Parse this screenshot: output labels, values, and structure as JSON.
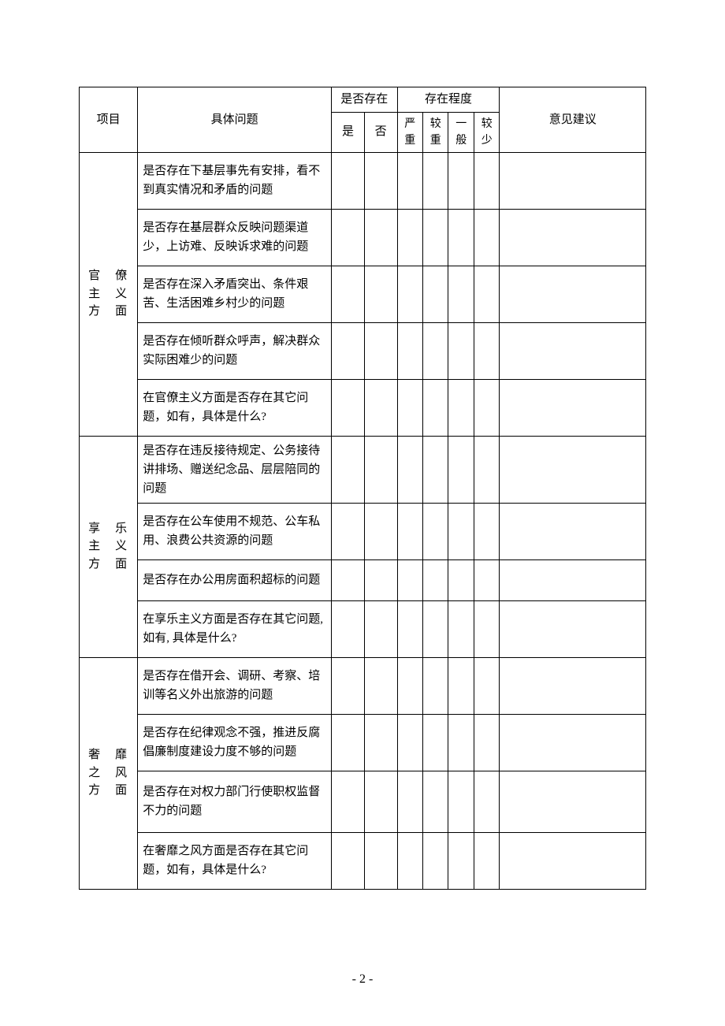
{
  "headers": {
    "project": "项目",
    "question": "具体问题",
    "exists": "是否存在",
    "exists_yes": "是",
    "exists_no": "否",
    "degree": "存在程度",
    "degree_severe": "严重",
    "degree_heavy": "较重",
    "degree_normal": "一般",
    "degree_light": "较少",
    "suggestion": "意见建议"
  },
  "sections": [
    {
      "title_lines": [
        "官　僚",
        "主　义",
        "方　面"
      ],
      "questions": [
        "是否存在下基层事先有安排，看不到真实情况和矛盾的问题",
        "是否存在基层群众反映问题渠道少，上访难、反映诉求难的问题",
        "是否存在深入矛盾突出、条件艰苦、生活困难乡村少的问题",
        "是否存在倾听群众呼声，解决群众实际困难少的问题",
        "在官僚主义方面是否存在其它问题，如有，具体是什么?"
      ]
    },
    {
      "title_lines": [
        "享　乐",
        "主　义",
        "方　面"
      ],
      "questions": [
        "是否存在违反接待规定、公务接待讲排场、赠送纪念品、层层陪同的问题",
        "是否存在公车使用不规范、公车私用、浪费公共资源的问题",
        "是否存在办公用房面积超标的问题",
        "在享乐主义方面是否存在其它问题, 如有, 具体是什么?"
      ]
    },
    {
      "title_lines": [
        "奢　靡",
        "之　风",
        "方　面"
      ],
      "questions": [
        "是否存在借开会、调研、考察、培训等名义外出旅游的问题",
        "是否存在纪律观念不强，推进反腐倡廉制度建设力度不够的问题",
        "是否存在对权力部门行使职权监督不力的问题",
        "在奢靡之风方面是否存在其它问题，如有，具体是什么?"
      ]
    }
  ],
  "page_number": "- 2 -",
  "layout": {
    "col_widths": {
      "project": 58,
      "question": 212,
      "check": 36,
      "degree": 28,
      "suggest": 160
    },
    "border_color": "#000000",
    "background_color": "#ffffff",
    "font_size": 15,
    "row_heights": {
      "section0": [
        72,
        72,
        72,
        72,
        72
      ],
      "section1": [
        72,
        72,
        52,
        72
      ],
      "section2": [
        72,
        72,
        78,
        72
      ]
    }
  }
}
